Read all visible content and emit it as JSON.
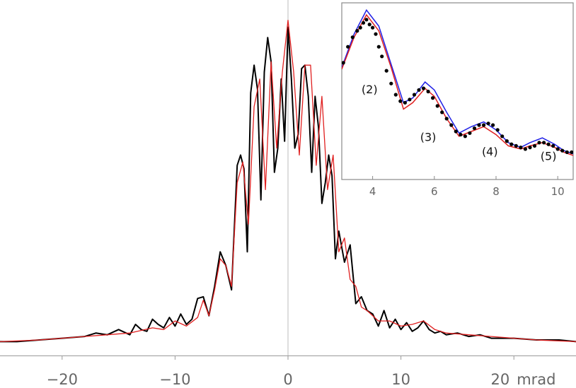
{
  "chart_data": [
    {
      "type": "line",
      "title": "",
      "xlabel": "",
      "ylabel": "",
      "xlim": [
        -25.5,
        25.5
      ],
      "x_ticks": [
        -20,
        -10,
        0,
        10,
        20
      ],
      "x_tick_labels": [
        "−20",
        "−10",
        "0",
        "10",
        "20"
      ],
      "x_unit_label": "mrad",
      "ylim": [
        0,
        1.0
      ],
      "grid": false,
      "reference_line_x": 0,
      "series": [
        {
          "role": "measured",
          "color": "#000000",
          "x": [
            -25.5,
            -24,
            -22,
            -20,
            -18,
            -17,
            -16,
            -15,
            -14,
            -13.5,
            -13,
            -12.5,
            -12,
            -11.5,
            -11,
            -10.5,
            -10,
            -9.5,
            -9,
            -8.5,
            -8,
            -7.5,
            -7,
            -6.5,
            -6,
            -5.5,
            -5,
            -4.5,
            -4.2,
            -3.9,
            -3.6,
            -3.3,
            -3,
            -2.7,
            -2.4,
            -2.1,
            -1.8,
            -1.5,
            -1.2,
            -0.9,
            -0.6,
            -0.3,
            0,
            0.3,
            0.6,
            0.9,
            1.2,
            1.5,
            1.8,
            2.1,
            2.4,
            2.7,
            3,
            3.3,
            3.6,
            3.9,
            4.2,
            4.5,
            5,
            5.5,
            6,
            6.5,
            7,
            7.5,
            8,
            8.5,
            9,
            9.5,
            10,
            10.5,
            11,
            11.5,
            12,
            12.5,
            13,
            13.5,
            14,
            15,
            16,
            17,
            18,
            20,
            22,
            24,
            25.5
          ],
          "y": [
            0.04,
            0.04,
            0.045,
            0.05,
            0.055,
            0.065,
            0.06,
            0.075,
            0.06,
            0.09,
            0.075,
            0.07,
            0.105,
            0.09,
            0.08,
            0.11,
            0.085,
            0.12,
            0.09,
            0.105,
            0.165,
            0.17,
            0.115,
            0.2,
            0.3,
            0.26,
            0.19,
            0.55,
            0.58,
            0.54,
            0.3,
            0.76,
            0.84,
            0.77,
            0.45,
            0.82,
            0.92,
            0.85,
            0.53,
            0.6,
            0.8,
            0.62,
            0.95,
            0.8,
            0.6,
            0.64,
            0.83,
            0.84,
            0.75,
            0.53,
            0.75,
            0.66,
            0.44,
            0.5,
            0.58,
            0.52,
            0.28,
            0.36,
            0.27,
            0.32,
            0.15,
            0.17,
            0.13,
            0.12,
            0.085,
            0.13,
            0.08,
            0.105,
            0.075,
            0.095,
            0.07,
            0.08,
            0.1,
            0.075,
            0.065,
            0.07,
            0.06,
            0.065,
            0.055,
            0.06,
            0.05,
            0.05,
            0.045,
            0.045,
            0.04
          ]
        },
        {
          "role": "fit",
          "color": "#e02020",
          "x": [
            -25.5,
            -22,
            -18,
            -16,
            -14,
            -12,
            -11,
            -10,
            -9,
            -8,
            -7.5,
            -7,
            -6.5,
            -6,
            -5.5,
            -5,
            -4.5,
            -4,
            -3.5,
            -3,
            -2.5,
            -2,
            -1.5,
            -1,
            -0.5,
            0,
            0.5,
            1,
            1.5,
            2,
            2.5,
            3,
            3.5,
            4,
            4.5,
            5,
            5.5,
            6,
            6.5,
            7,
            8,
            9,
            10,
            11,
            12,
            13,
            14,
            16,
            18,
            22,
            25.5
          ],
          "y": [
            0.04,
            0.045,
            0.055,
            0.06,
            0.065,
            0.08,
            0.075,
            0.1,
            0.085,
            0.11,
            0.16,
            0.115,
            0.19,
            0.28,
            0.26,
            0.2,
            0.5,
            0.56,
            0.38,
            0.72,
            0.8,
            0.48,
            0.85,
            0.6,
            0.82,
            0.97,
            0.82,
            0.58,
            0.84,
            0.84,
            0.55,
            0.75,
            0.48,
            0.58,
            0.3,
            0.34,
            0.22,
            0.2,
            0.14,
            0.13,
            0.1,
            0.1,
            0.085,
            0.09,
            0.1,
            0.075,
            0.065,
            0.06,
            0.055,
            0.045,
            0.04
          ]
        }
      ]
    },
    {
      "type": "line",
      "title": "",
      "xlabel": "",
      "ylabel": "",
      "xlim": [
        3,
        10.5
      ],
      "x_ticks": [
        4,
        6,
        8,
        10
      ],
      "x_tick_labels": [
        "4",
        "6",
        "8",
        "10"
      ],
      "ylim": [
        0,
        1.0
      ],
      "grid": false,
      "annotations": [
        {
          "text": "(2)",
          "x": 3.9,
          "y": 0.47
        },
        {
          "text": "(3)",
          "x": 5.8,
          "y": 0.17
        },
        {
          "text": "(4)",
          "x": 7.8,
          "y": 0.08
        },
        {
          "text": "(5)",
          "x": 9.7,
          "y": 0.05
        }
      ],
      "series": [
        {
          "role": "fit-blue",
          "color": "#1f1fe6",
          "x": [
            3,
            3.4,
            3.8,
            4.2,
            4.6,
            5,
            5.3,
            5.7,
            6,
            6.4,
            6.8,
            7.2,
            7.6,
            8,
            8.4,
            8.8,
            9.1,
            9.5,
            9.9,
            10.2,
            10.5
          ],
          "y": [
            0.63,
            0.84,
            0.99,
            0.89,
            0.65,
            0.41,
            0.44,
            0.54,
            0.49,
            0.35,
            0.22,
            0.26,
            0.29,
            0.24,
            0.16,
            0.13,
            0.16,
            0.19,
            0.15,
            0.11,
            0.09
          ]
        },
        {
          "role": "fit-red",
          "color": "#e02020",
          "x": [
            3,
            3.4,
            3.8,
            4.2,
            4.6,
            5,
            5.3,
            5.7,
            6,
            6.4,
            6.8,
            7.2,
            7.6,
            8,
            8.4,
            8.8,
            9.1,
            9.5,
            9.9,
            10.2,
            10.5
          ],
          "y": [
            0.62,
            0.82,
            0.96,
            0.86,
            0.63,
            0.37,
            0.41,
            0.5,
            0.45,
            0.31,
            0.2,
            0.23,
            0.26,
            0.21,
            0.14,
            0.12,
            0.14,
            0.16,
            0.13,
            0.1,
            0.08
          ]
        },
        {
          "role": "measured-points",
          "color": "#000000",
          "x": [
            3.05,
            3.2,
            3.35,
            3.5,
            3.6,
            3.7,
            3.8,
            3.9,
            4,
            4.1,
            4.2,
            4.3,
            4.45,
            4.6,
            4.75,
            4.9,
            5.05,
            5.2,
            5.35,
            5.5,
            5.65,
            5.8,
            5.95,
            6.1,
            6.25,
            6.4,
            6.55,
            6.7,
            6.85,
            7,
            7.15,
            7.3,
            7.45,
            7.6,
            7.75,
            7.9,
            8.05,
            8.2,
            8.35,
            8.5,
            8.65,
            8.8,
            8.95,
            9.1,
            9.25,
            9.4,
            9.55,
            9.7,
            9.85,
            10,
            10.15,
            10.3,
            10.45
          ],
          "y": [
            0.66,
            0.76,
            0.82,
            0.86,
            0.88,
            0.91,
            0.93,
            0.9,
            0.88,
            0.84,
            0.76,
            0.7,
            0.61,
            0.53,
            0.46,
            0.42,
            0.41,
            0.43,
            0.46,
            0.49,
            0.5,
            0.48,
            0.44,
            0.39,
            0.35,
            0.31,
            0.27,
            0.23,
            0.21,
            0.2,
            0.22,
            0.25,
            0.27,
            0.27,
            0.28,
            0.27,
            0.24,
            0.2,
            0.17,
            0.15,
            0.14,
            0.13,
            0.12,
            0.13,
            0.14,
            0.16,
            0.16,
            0.15,
            0.14,
            0.12,
            0.11,
            0.1,
            0.1
          ]
        }
      ]
    }
  ]
}
